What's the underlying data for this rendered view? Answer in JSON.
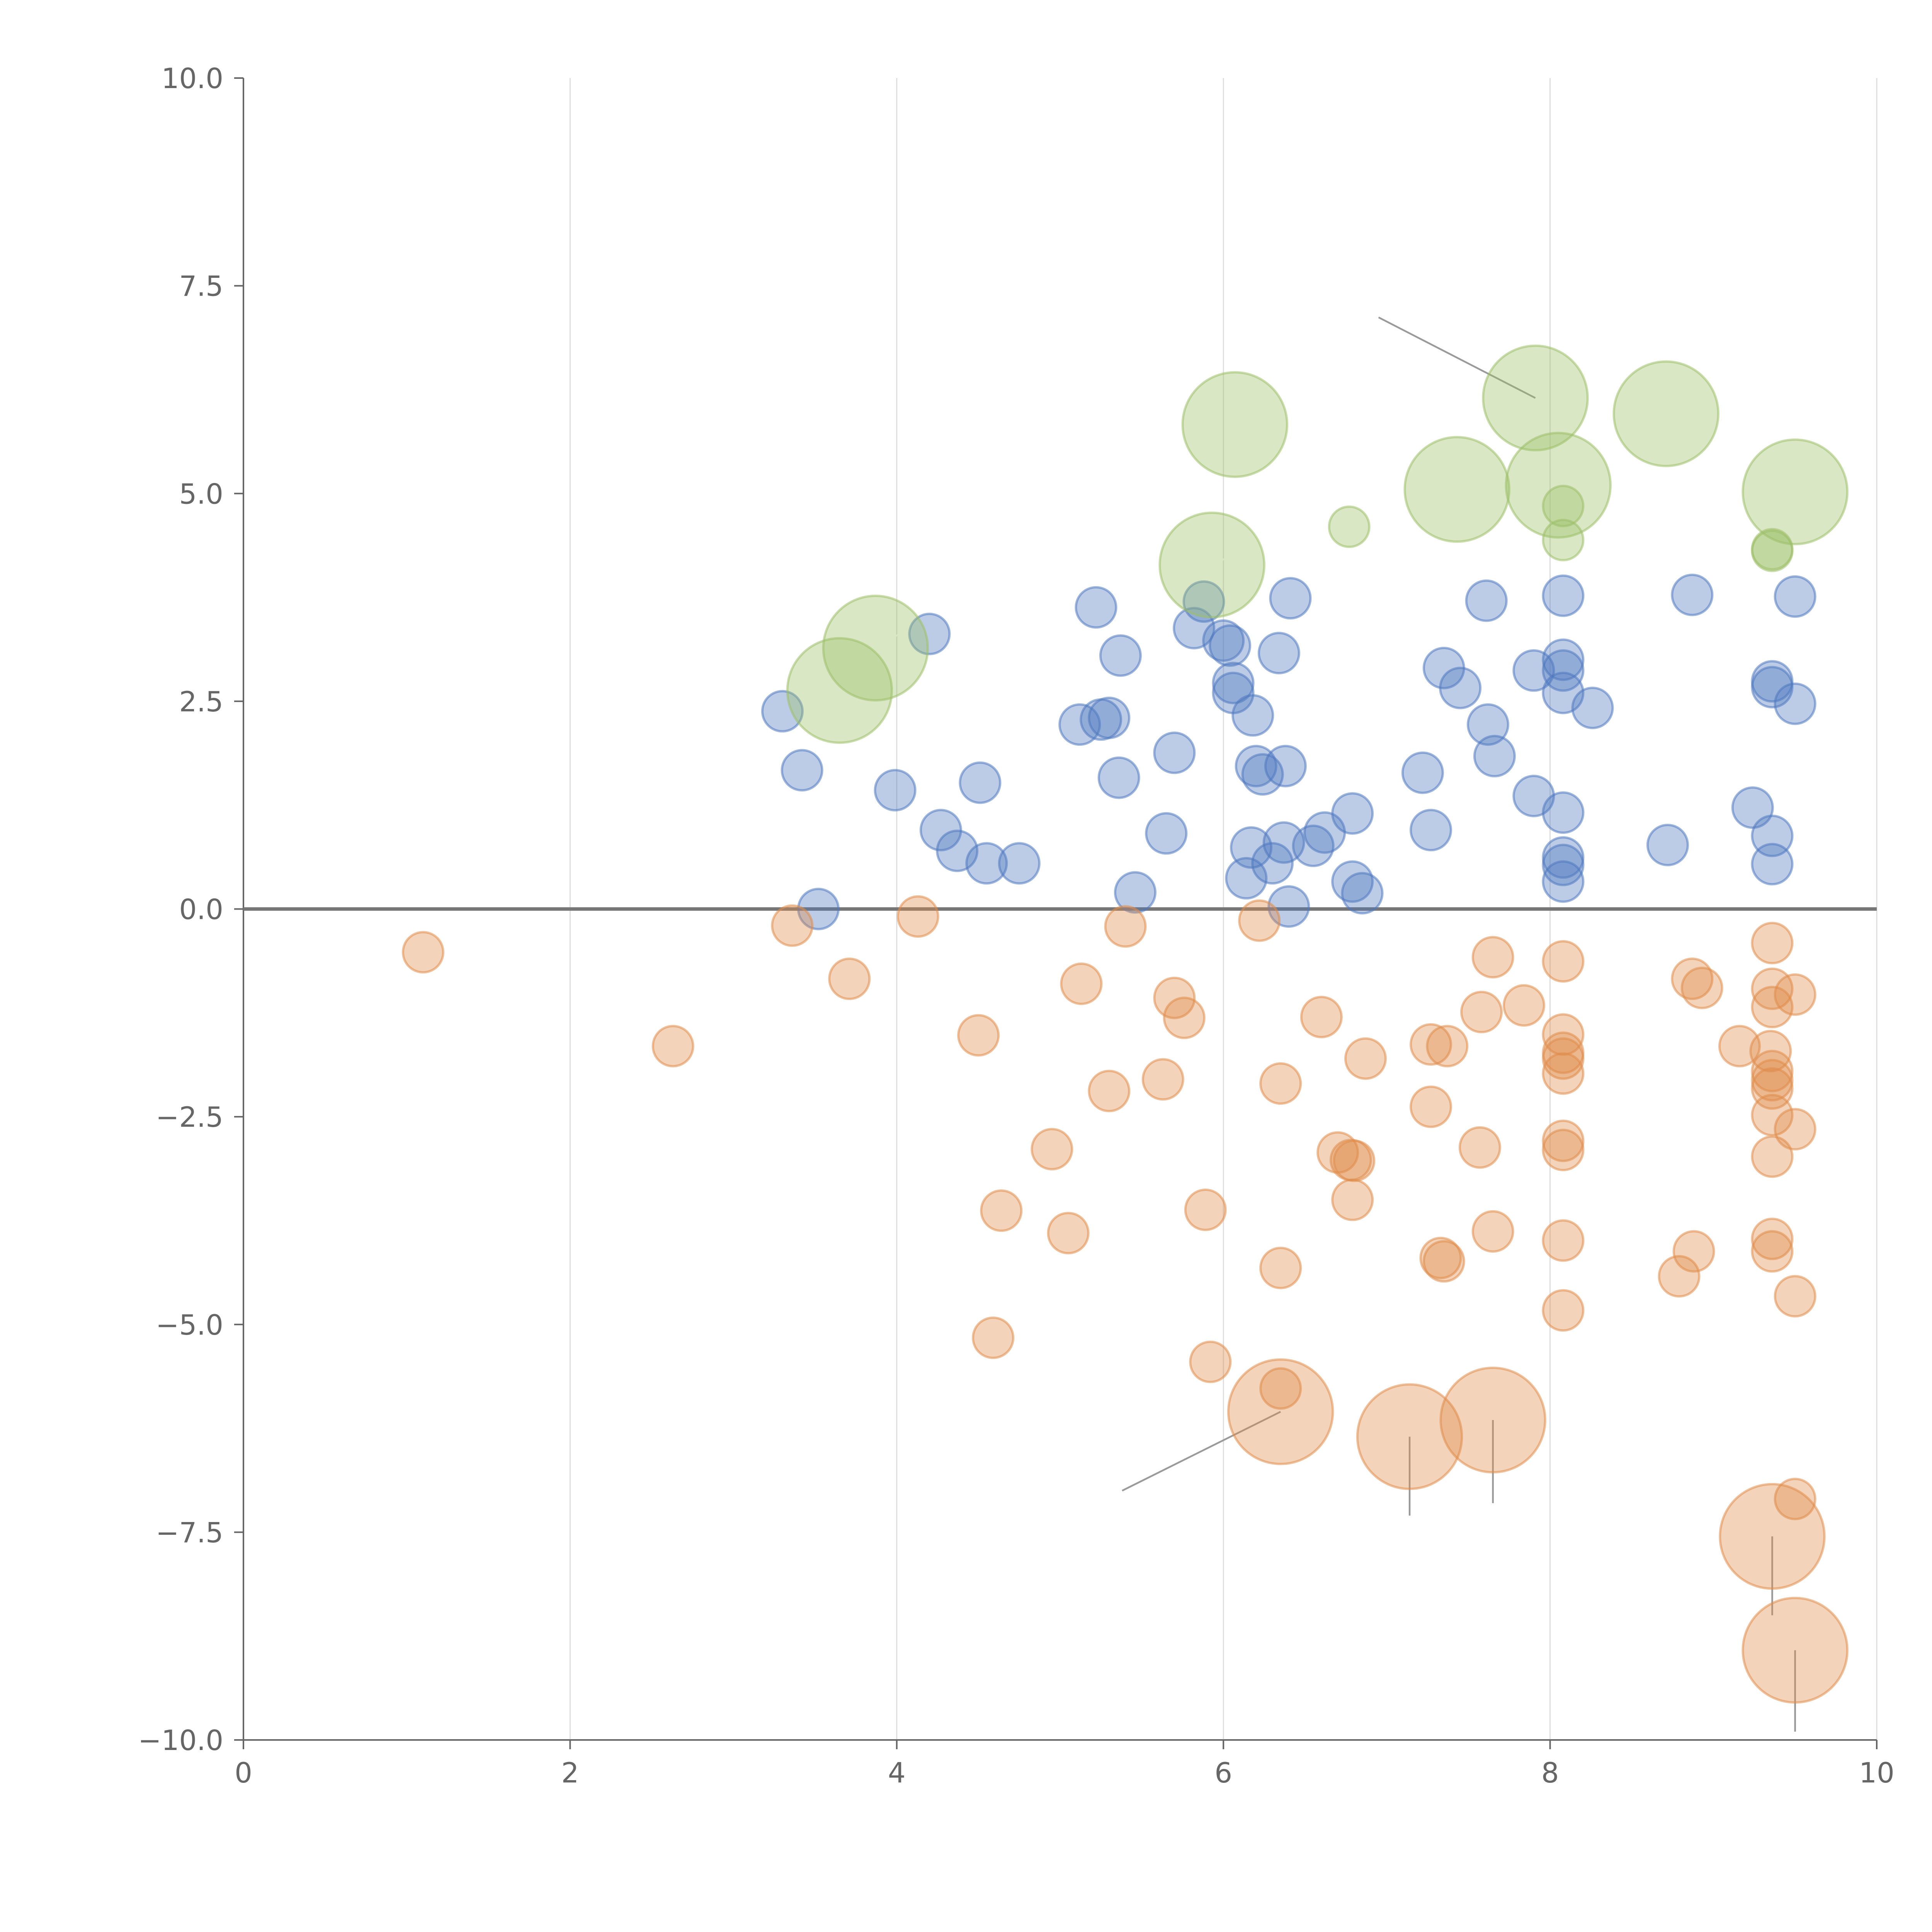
{
  "colors": {
    "positive": "#4e79c0",
    "negative": "#e08c4a",
    "highlight": "#9cc067",
    "grid": "#dddddd",
    "axis": "#666666"
  },
  "chart_data": {
    "type": "scatter",
    "title": "",
    "xlabel": "",
    "ylabel": "",
    "xlim": [
      0,
      10
    ],
    "ylim": [
      -10,
      10
    ],
    "x_ticks": [
      0,
      2,
      4,
      6,
      8,
      10
    ],
    "x_tick_labels": [
      "0",
      "2",
      "4",
      "6",
      "8",
      "10"
    ],
    "y_ticks": [
      10,
      7.5,
      5,
      2.5,
      0,
      -2.5,
      -5,
      -7.5,
      -10
    ],
    "y_tick_labels": [
      "10.0",
      "7.5",
      "5.0",
      "2.5",
      "0.0",
      "−2.5",
      "−5.0",
      "−7.5",
      "−10.0"
    ],
    "grid": "vertical",
    "reference_line_y": 0,
    "legend": "none",
    "series": [
      {
        "name": "positive",
        "color_key": "positive",
        "size": 1,
        "points": [
          [
            3.3,
            2.38
          ],
          [
            3.42,
            1.67
          ],
          [
            3.52,
            0.0
          ],
          [
            3.99,
            1.43
          ],
          [
            4.2,
            3.31
          ],
          [
            4.27,
            0.95
          ],
          [
            4.37,
            0.7
          ],
          [
            4.51,
            1.52
          ],
          [
            4.55,
            0.55
          ],
          [
            4.75,
            0.55
          ],
          [
            5.12,
            2.22
          ],
          [
            5.22,
            3.63
          ],
          [
            5.25,
            2.28
          ],
          [
            5.3,
            2.3
          ],
          [
            5.36,
            1.58
          ],
          [
            5.37,
            3.05
          ],
          [
            5.46,
            0.2
          ],
          [
            5.65,
            0.91
          ],
          [
            5.7,
            1.88
          ],
          [
            5.82,
            3.38
          ],
          [
            5.88,
            3.7
          ],
          [
            6.0,
            3.23
          ],
          [
            6.04,
            3.17
          ],
          [
            6.06,
            2.72
          ],
          [
            6.06,
            2.6
          ],
          [
            6.14,
            0.37
          ],
          [
            6.17,
            0.74
          ],
          [
            6.18,
            2.33
          ],
          [
            6.2,
            1.72
          ],
          [
            6.24,
            1.62
          ],
          [
            6.3,
            0.55
          ],
          [
            6.34,
            3.08
          ],
          [
            6.37,
            0.8
          ],
          [
            6.38,
            1.72
          ],
          [
            6.4,
            0.03
          ],
          [
            6.41,
            3.74
          ],
          [
            6.55,
            0.76
          ],
          [
            6.62,
            0.92
          ],
          [
            6.79,
            1.15
          ],
          [
            6.79,
            0.33
          ],
          [
            6.85,
            0.19
          ],
          [
            7.22,
            1.64
          ],
          [
            7.27,
            0.95
          ],
          [
            7.35,
            2.9
          ],
          [
            7.45,
            2.66
          ],
          [
            7.61,
            3.71
          ],
          [
            7.62,
            2.22
          ],
          [
            7.66,
            1.84
          ],
          [
            7.9,
            2.87
          ],
          [
            7.9,
            1.36
          ],
          [
            8.08,
            3.77
          ],
          [
            8.08,
            3.0
          ],
          [
            8.08,
            2.87
          ],
          [
            8.08,
            2.6
          ],
          [
            8.08,
            1.16
          ],
          [
            8.08,
            0.62
          ],
          [
            8.08,
            0.53
          ],
          [
            8.08,
            0.33
          ],
          [
            8.26,
            2.42
          ],
          [
            8.72,
            0.77
          ],
          [
            8.87,
            3.78
          ],
          [
            9.24,
            1.22
          ],
          [
            9.36,
            2.74
          ],
          [
            9.36,
            2.67
          ],
          [
            9.36,
            0.88
          ],
          [
            9.36,
            0.54
          ],
          [
            9.5,
            3.76
          ],
          [
            9.5,
            2.47
          ]
        ]
      },
      {
        "name": "negative",
        "color_key": "negative",
        "size": 1,
        "points": [
          [
            1.1,
            -0.52
          ],
          [
            2.63,
            -1.65
          ],
          [
            3.36,
            -0.2
          ],
          [
            3.71,
            -0.84
          ],
          [
            4.13,
            -0.09
          ],
          [
            4.5,
            -1.52
          ],
          [
            4.59,
            -5.16
          ],
          [
            4.64,
            -3.63
          ],
          [
            4.95,
            -2.89
          ],
          [
            5.05,
            -3.9
          ],
          [
            5.13,
            -0.9
          ],
          [
            5.3,
            -2.19
          ],
          [
            5.4,
            -0.21
          ],
          [
            5.63,
            -2.05
          ],
          [
            5.7,
            -1.07
          ],
          [
            5.76,
            -1.31
          ],
          [
            5.89,
            -3.62
          ],
          [
            5.92,
            -5.45
          ],
          [
            6.22,
            -0.14
          ],
          [
            6.35,
            -2.1
          ],
          [
            6.35,
            -4.32
          ],
          [
            6.35,
            -5.77
          ],
          [
            6.6,
            -1.3
          ],
          [
            6.7,
            -2.93
          ],
          [
            6.78,
            -3.02
          ],
          [
            6.79,
            -3.5
          ],
          [
            6.8,
            -3.03
          ],
          [
            6.87,
            -1.8
          ],
          [
            7.27,
            -1.63
          ],
          [
            7.27,
            -2.38
          ],
          [
            7.33,
            -4.2
          ],
          [
            7.35,
            -4.24
          ],
          [
            7.37,
            -1.65
          ],
          [
            7.57,
            -2.87
          ],
          [
            7.58,
            -1.24
          ],
          [
            7.65,
            -0.58
          ],
          [
            7.65,
            -3.88
          ],
          [
            7.84,
            -1.16
          ],
          [
            8.08,
            -0.63
          ],
          [
            8.08,
            -1.51
          ],
          [
            8.08,
            -1.73
          ],
          [
            8.08,
            -1.8
          ],
          [
            8.08,
            -1.98
          ],
          [
            8.08,
            -2.79
          ],
          [
            8.08,
            -2.9
          ],
          [
            8.08,
            -3.99
          ],
          [
            8.08,
            -4.83
          ],
          [
            8.79,
            -4.42
          ],
          [
            8.87,
            -0.84
          ],
          [
            8.88,
            -4.12
          ],
          [
            8.93,
            -0.95
          ],
          [
            9.16,
            -1.65
          ],
          [
            9.35,
            -1.71
          ],
          [
            9.36,
            -0.41
          ],
          [
            9.36,
            -0.96
          ],
          [
            9.36,
            -1.18
          ],
          [
            9.36,
            -1.95
          ],
          [
            9.36,
            -2.06
          ],
          [
            9.36,
            -2.16
          ],
          [
            9.36,
            -2.48
          ],
          [
            9.36,
            -2.98
          ],
          [
            9.36,
            -3.97
          ],
          [
            9.36,
            -4.12
          ],
          [
            9.5,
            -1.03
          ],
          [
            9.5,
            -2.65
          ],
          [
            9.5,
            -4.66
          ],
          [
            9.5,
            -7.1
          ]
        ]
      },
      {
        "name": "highlight_positive",
        "color_key": "highlight",
        "size": 2.6,
        "points": [
          [
            3.65,
            2.63
          ],
          [
            3.87,
            3.14
          ],
          [
            5.93,
            4.14
          ],
          [
            6.07,
            5.83
          ],
          [
            7.43,
            5.05
          ],
          [
            7.91,
            6.15
          ],
          [
            8.05,
            5.1
          ],
          [
            8.71,
            5.96
          ],
          [
            9.5,
            5.02
          ]
        ]
      },
      {
        "name": "highlight_positive_small",
        "color_key": "highlight",
        "size": 1,
        "points": [
          [
            6.77,
            4.6
          ],
          [
            8.08,
            4.85
          ],
          [
            8.08,
            4.44
          ],
          [
            9.36,
            4.31
          ],
          [
            9.36,
            4.33
          ]
        ]
      },
      {
        "name": "highlight_negative",
        "color_key": "negative",
        "size": 2.6,
        "points": [
          [
            6.35,
            -6.05
          ],
          [
            7.14,
            -6.35
          ],
          [
            7.65,
            -6.15
          ],
          [
            9.36,
            -7.55
          ],
          [
            9.5,
            -8.92
          ]
        ]
      }
    ]
  }
}
